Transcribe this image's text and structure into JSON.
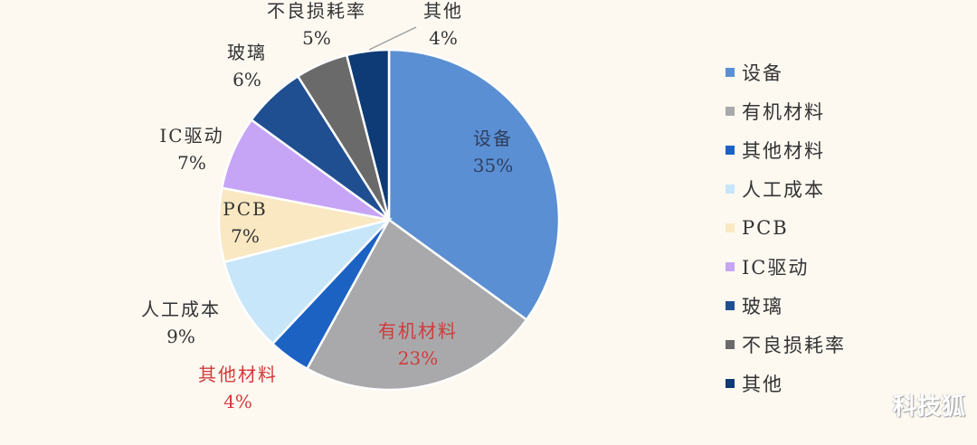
{
  "chart_data": {
    "type": "pie",
    "title": "",
    "start_angle": "12 o'clock, clockwise",
    "categories": [
      "设备",
      "有机材料",
      "其他材料",
      "人工成本",
      "PCB",
      "IC驱动",
      "玻璃",
      "不良损耗率",
      "其他"
    ],
    "values": [
      35,
      23,
      4,
      9,
      7,
      7,
      6,
      5,
      4
    ],
    "unit": "%",
    "colors": [
      "#5b8fd3",
      "#a9a9ab",
      "#1c62c3",
      "#c7e6f9",
      "#f9e8c2",
      "#c6a5f7",
      "#1f4f91",
      "#6a6a6a",
      "#0e3a75"
    ],
    "data_labels": [
      {
        "name": "设备",
        "pct": "35%",
        "color": "#2e3e5e"
      },
      {
        "name": "有机材料",
        "pct": "23%",
        "color": "#d23a3a"
      },
      {
        "name": "其他材料",
        "pct": "4%",
        "color": "#d23a3a"
      },
      {
        "name": "人工成本",
        "pct": "9%",
        "color": "#333333"
      },
      {
        "name": "PCB",
        "pct": "7%",
        "color": "#333333"
      },
      {
        "name": "IC驱动",
        "pct": "7%",
        "color": "#333333"
      },
      {
        "name": "玻璃",
        "pct": "6%",
        "color": "#333333"
      },
      {
        "name": "不良损耗率",
        "pct": "5%",
        "color": "#333333"
      },
      {
        "name": "其他",
        "pct": "4%",
        "color": "#333333"
      }
    ],
    "legend_position": "right"
  },
  "legend": [
    {
      "label": "设备",
      "color": "#5b8fd3"
    },
    {
      "label": "有机材料",
      "color": "#a9a9ab"
    },
    {
      "label": "其他材料",
      "color": "#1c62c3"
    },
    {
      "label": "人工成本",
      "color": "#c7e6f9"
    },
    {
      "label": "PCB",
      "color": "#f9e8c2"
    },
    {
      "label": "IC驱动",
      "color": "#c6a5f7"
    },
    {
      "label": "玻璃",
      "color": "#1f4f91"
    },
    {
      "label": "不良损耗率",
      "color": "#6a6a6a"
    },
    {
      "label": "其他",
      "color": "#0e3a75"
    }
  ],
  "watermark": "科技狐"
}
